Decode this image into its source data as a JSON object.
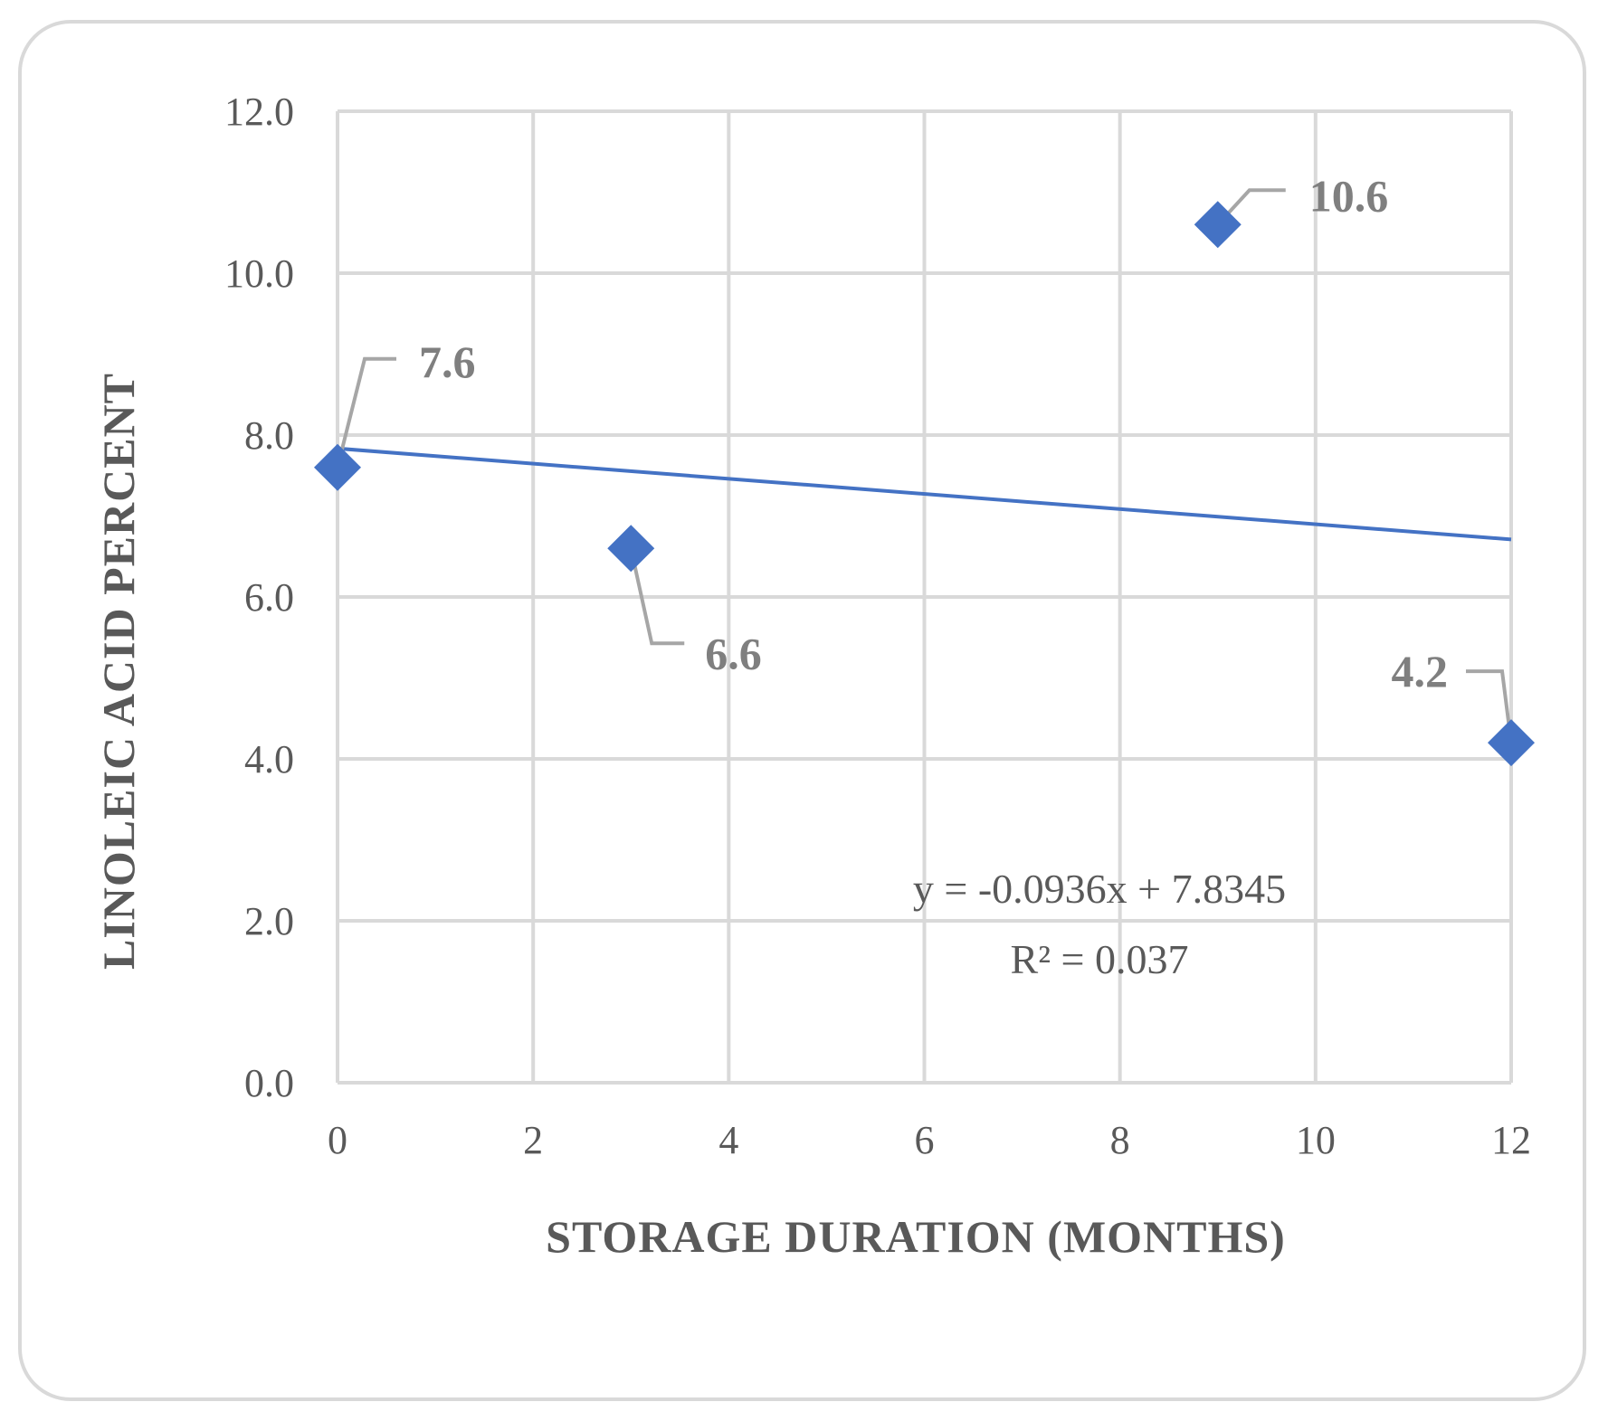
{
  "chart_data": {
    "type": "scatter",
    "x": [
      0,
      3,
      9,
      12
    ],
    "y": [
      7.6,
      6.6,
      10.6,
      4.2
    ],
    "data_labels": [
      "7.6",
      "6.6",
      "10.6",
      "4.2"
    ],
    "xlabel": "STORAGE  DURATION (MONTHS)",
    "ylabel": "LINOLEIC  ACID PERCENT",
    "xlim": [
      0,
      12
    ],
    "ylim": [
      0,
      12
    ],
    "x_ticks": [
      0,
      2,
      4,
      6,
      8,
      10,
      12
    ],
    "x_tick_labels": [
      "0",
      "2",
      "4",
      "6",
      "8",
      "10",
      "12"
    ],
    "y_ticks": [
      0,
      2,
      4,
      6,
      8,
      10,
      12
    ],
    "y_tick_labels": [
      "0.0",
      "2.0",
      "4.0",
      "6.0",
      "8.0",
      "10.0",
      "12.0"
    ],
    "grid": true,
    "marker": "diamond",
    "marker_color": "#4472c4",
    "trendline": {
      "type": "linear",
      "slope": -0.0936,
      "intercept": 7.8345,
      "color": "#4472c4",
      "equation": "y = -0.0936x + 7.8345",
      "r_squared": "R² = 0.037"
    },
    "colors": {
      "grid": "#d9d9d9",
      "text": "#595959",
      "label": "#7f7f7f",
      "leader": "#a6a6a6"
    }
  }
}
